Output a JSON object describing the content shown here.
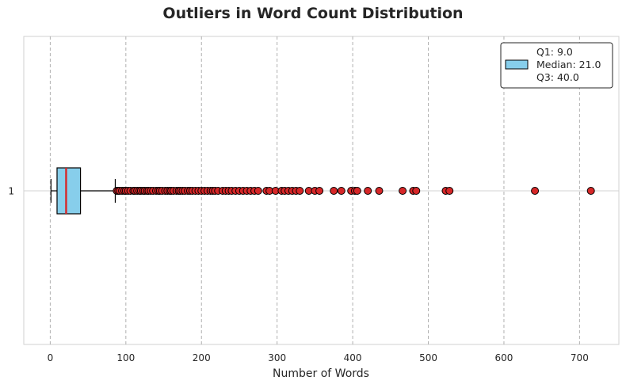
{
  "chart_data": {
    "type": "boxplot",
    "title": "Outliers in Word Count Distribution",
    "xlabel": "Number of Words",
    "ylabel": "",
    "xlim": [
      -35,
      752
    ],
    "xticks": [
      0,
      100,
      200,
      300,
      400,
      500,
      600,
      700
    ],
    "ytick_labels": [
      "1"
    ],
    "orientation": "horizontal",
    "grid": "x-dashed",
    "box": {
      "whisker_low": 1,
      "q1": 9.0,
      "median": 21.0,
      "q3": 40.0,
      "whisker_high": 86,
      "fill_color": "#87ceeb",
      "median_color": "#d62728"
    },
    "outliers": [
      88,
      90,
      92,
      95,
      98,
      100,
      103,
      106,
      110,
      112,
      115,
      118,
      120,
      123,
      125,
      128,
      130,
      133,
      136,
      140,
      143,
      145,
      148,
      152,
      155,
      158,
      160,
      163,
      167,
      170,
      172,
      175,
      178,
      182,
      185,
      188,
      192,
      196,
      200,
      204,
      208,
      212,
      215,
      218,
      222,
      228,
      232,
      236,
      240,
      245,
      250,
      255,
      260,
      265,
      270,
      275,
      286,
      290,
      298,
      306,
      310,
      315,
      320,
      325,
      330,
      342,
      350,
      356,
      375,
      385,
      398,
      403,
      406,
      420,
      435,
      466,
      480,
      484,
      523,
      528,
      641,
      715
    ],
    "outlier_color": "#d62728",
    "legend": {
      "position": "top-right",
      "entries": [
        "Q1: 9.0",
        "Median: 21.0",
        "Q3: 40.0"
      ]
    }
  }
}
